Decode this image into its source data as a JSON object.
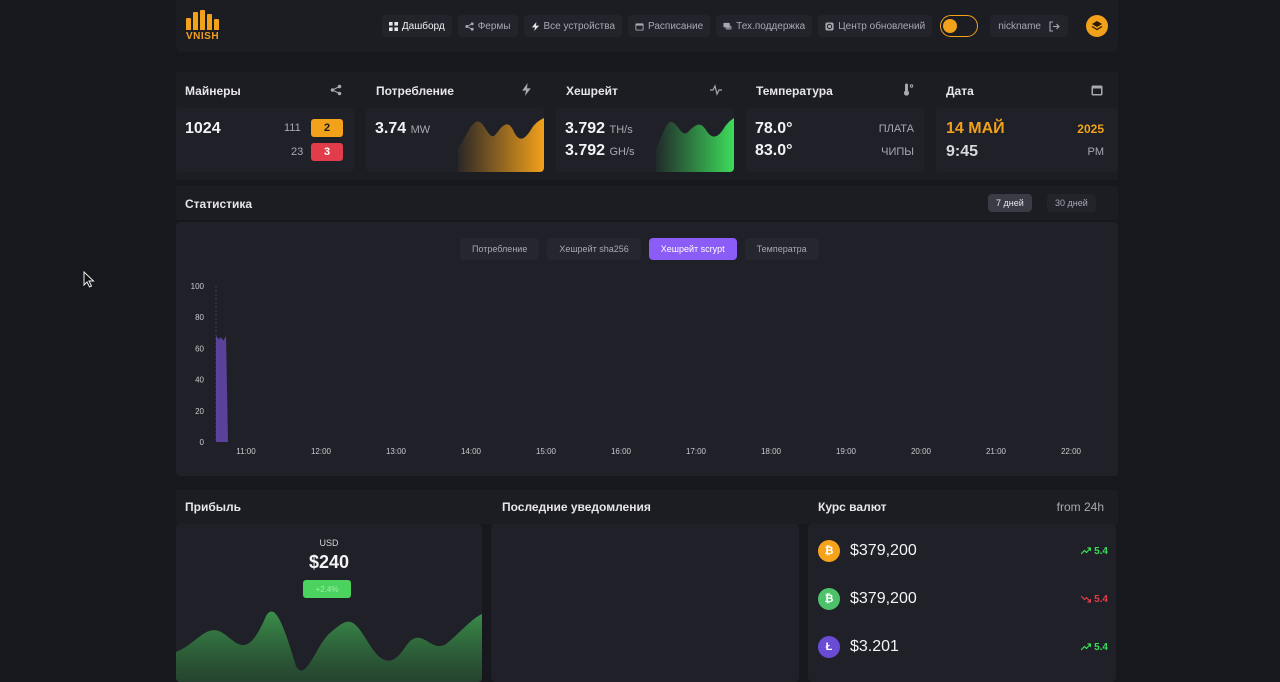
{
  "header": {
    "logo_text": "VNISH",
    "nav": [
      {
        "label": "Дашборд",
        "icon": "grid-icon",
        "active": true
      },
      {
        "label": "Фермы",
        "icon": "share-icon",
        "active": false
      },
      {
        "label": "Все устройства",
        "icon": "bolt-icon",
        "active": false
      },
      {
        "label": "Расписание",
        "icon": "calendar-icon",
        "active": false
      },
      {
        "label": "Тех.поддержка",
        "icon": "chat-icon",
        "active": false
      },
      {
        "label": "Центр обновлений",
        "icon": "refresh-icon",
        "active": false
      }
    ],
    "username": "nickname",
    "accent": "#f2a11a"
  },
  "cards": {
    "miners": {
      "title": "Майнеры",
      "total": "1024",
      "warn_count": "111",
      "warn_badge": "2",
      "err_count": "23",
      "err_badge": "3"
    },
    "power": {
      "title": "Потребление",
      "value": "3.74",
      "unit": "MW"
    },
    "hashrate": {
      "title": "Хешрейт",
      "value1": "3.792",
      "unit1": "TH/s",
      "value2": "3.792",
      "unit2": "GH/s"
    },
    "temp": {
      "title": "Температура",
      "board": "78.0°",
      "board_label": "ПЛАТА",
      "chips": "83.0°",
      "chips_label": "ЧИПЫ"
    },
    "date": {
      "title": "Дата",
      "day": "14 МАЙ",
      "year": "2025",
      "time": "9:45",
      "ampm": "PM"
    }
  },
  "statistics": {
    "title": "Статистика",
    "periods": [
      "7 дней",
      "30 дней"
    ],
    "tabs": [
      "Потребление",
      "Хешрейт sha256",
      "Хешрейт scrypt",
      "Температра"
    ],
    "active_tab": 2
  },
  "chart_data": {
    "type": "area",
    "x_ticks": [
      "11:00",
      "12:00",
      "13:00",
      "14:00",
      "15:00",
      "16:00",
      "17:00",
      "18:00",
      "19:00",
      "20:00",
      "21:00",
      "22:00"
    ],
    "y_ticks": [
      "0",
      "20",
      "40",
      "60",
      "80",
      "100"
    ],
    "ylim": [
      0,
      100
    ],
    "series": [
      {
        "values": [
          68,
          66,
          67,
          65,
          68
        ]
      }
    ],
    "color": "#8b5cf6"
  },
  "profit": {
    "title": "Прибыль",
    "currency": "USD",
    "amount": "$240",
    "badge": "+2.4%"
  },
  "notifications": {
    "title": "Последние уведомления"
  },
  "rates": {
    "title": "Курс валют",
    "period": "from 24h",
    "coins": [
      {
        "icon": "bitcoin-icon",
        "symbol": "₿",
        "color": "#f7a21b",
        "price": "$379,200",
        "change": "5.4",
        "direction": "up"
      },
      {
        "icon": "bitcoin-cash-icon",
        "symbol": "₿",
        "color": "#4cc26a",
        "price": "$379,200",
        "change": "5.4",
        "direction": "down"
      },
      {
        "icon": "litecoin-icon",
        "symbol": "Ł",
        "color": "#6a4bd6",
        "price": "$3.201",
        "change": "5.4",
        "direction": "up"
      }
    ]
  }
}
